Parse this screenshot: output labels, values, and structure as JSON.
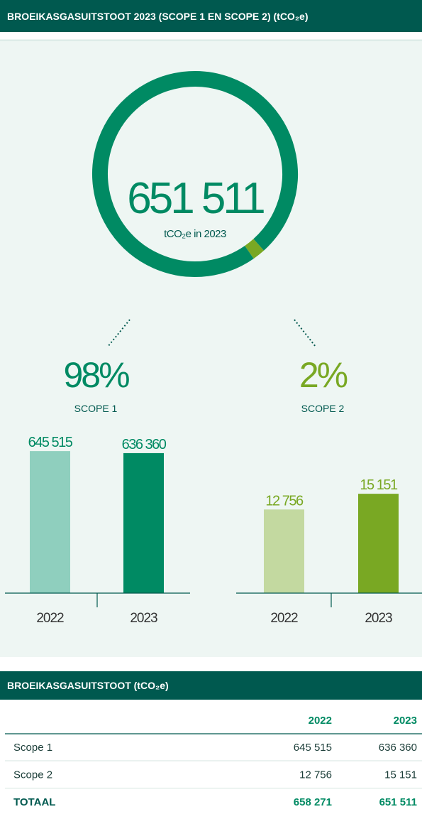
{
  "title": "BROEIKASGASUITSTOOT 2023 (SCOPE 1 EN SCOPE 2) (tCO₂e)",
  "chart_data": [
    {
      "type": "donut",
      "center_text": "651 511",
      "center_subtext": "tCO₂e in 2023",
      "categories": [
        "SCOPE 1",
        "SCOPE 2"
      ],
      "values": [
        98,
        2
      ],
      "value_labels": [
        "98%",
        "2%"
      ],
      "colors": [
        "#008a63",
        "#79a823"
      ]
    },
    {
      "type": "bar",
      "categories": [
        "2022",
        "2023"
      ],
      "values": [
        645515,
        636360
      ],
      "value_labels": [
        "645 515",
        "636 360"
      ],
      "colors": [
        "#8fcfbe",
        "#008a63"
      ],
      "ylim": [
        0,
        775000
      ]
    },
    {
      "type": "bar",
      "categories": [
        "2022",
        "2023"
      ],
      "values": [
        12756,
        15151
      ],
      "value_labels": [
        "12 756",
        "15 151"
      ],
      "colors": [
        "#c3d9a0",
        "#79a823"
      ],
      "ylim": [
        0,
        26000
      ]
    }
  ],
  "table": {
    "title": "BROEIKASGASUITSTOOT (tCO₂e)",
    "columns": [
      "2022",
      "2023"
    ],
    "rows": [
      {
        "label": "Scope 1",
        "values": [
          "645 515",
          "636 360"
        ]
      },
      {
        "label": "Scope 2",
        "values": [
          "12 756",
          "15 151"
        ]
      },
      {
        "label": "TOTAAL",
        "values": [
          "658 271",
          "651 511"
        ]
      }
    ]
  }
}
